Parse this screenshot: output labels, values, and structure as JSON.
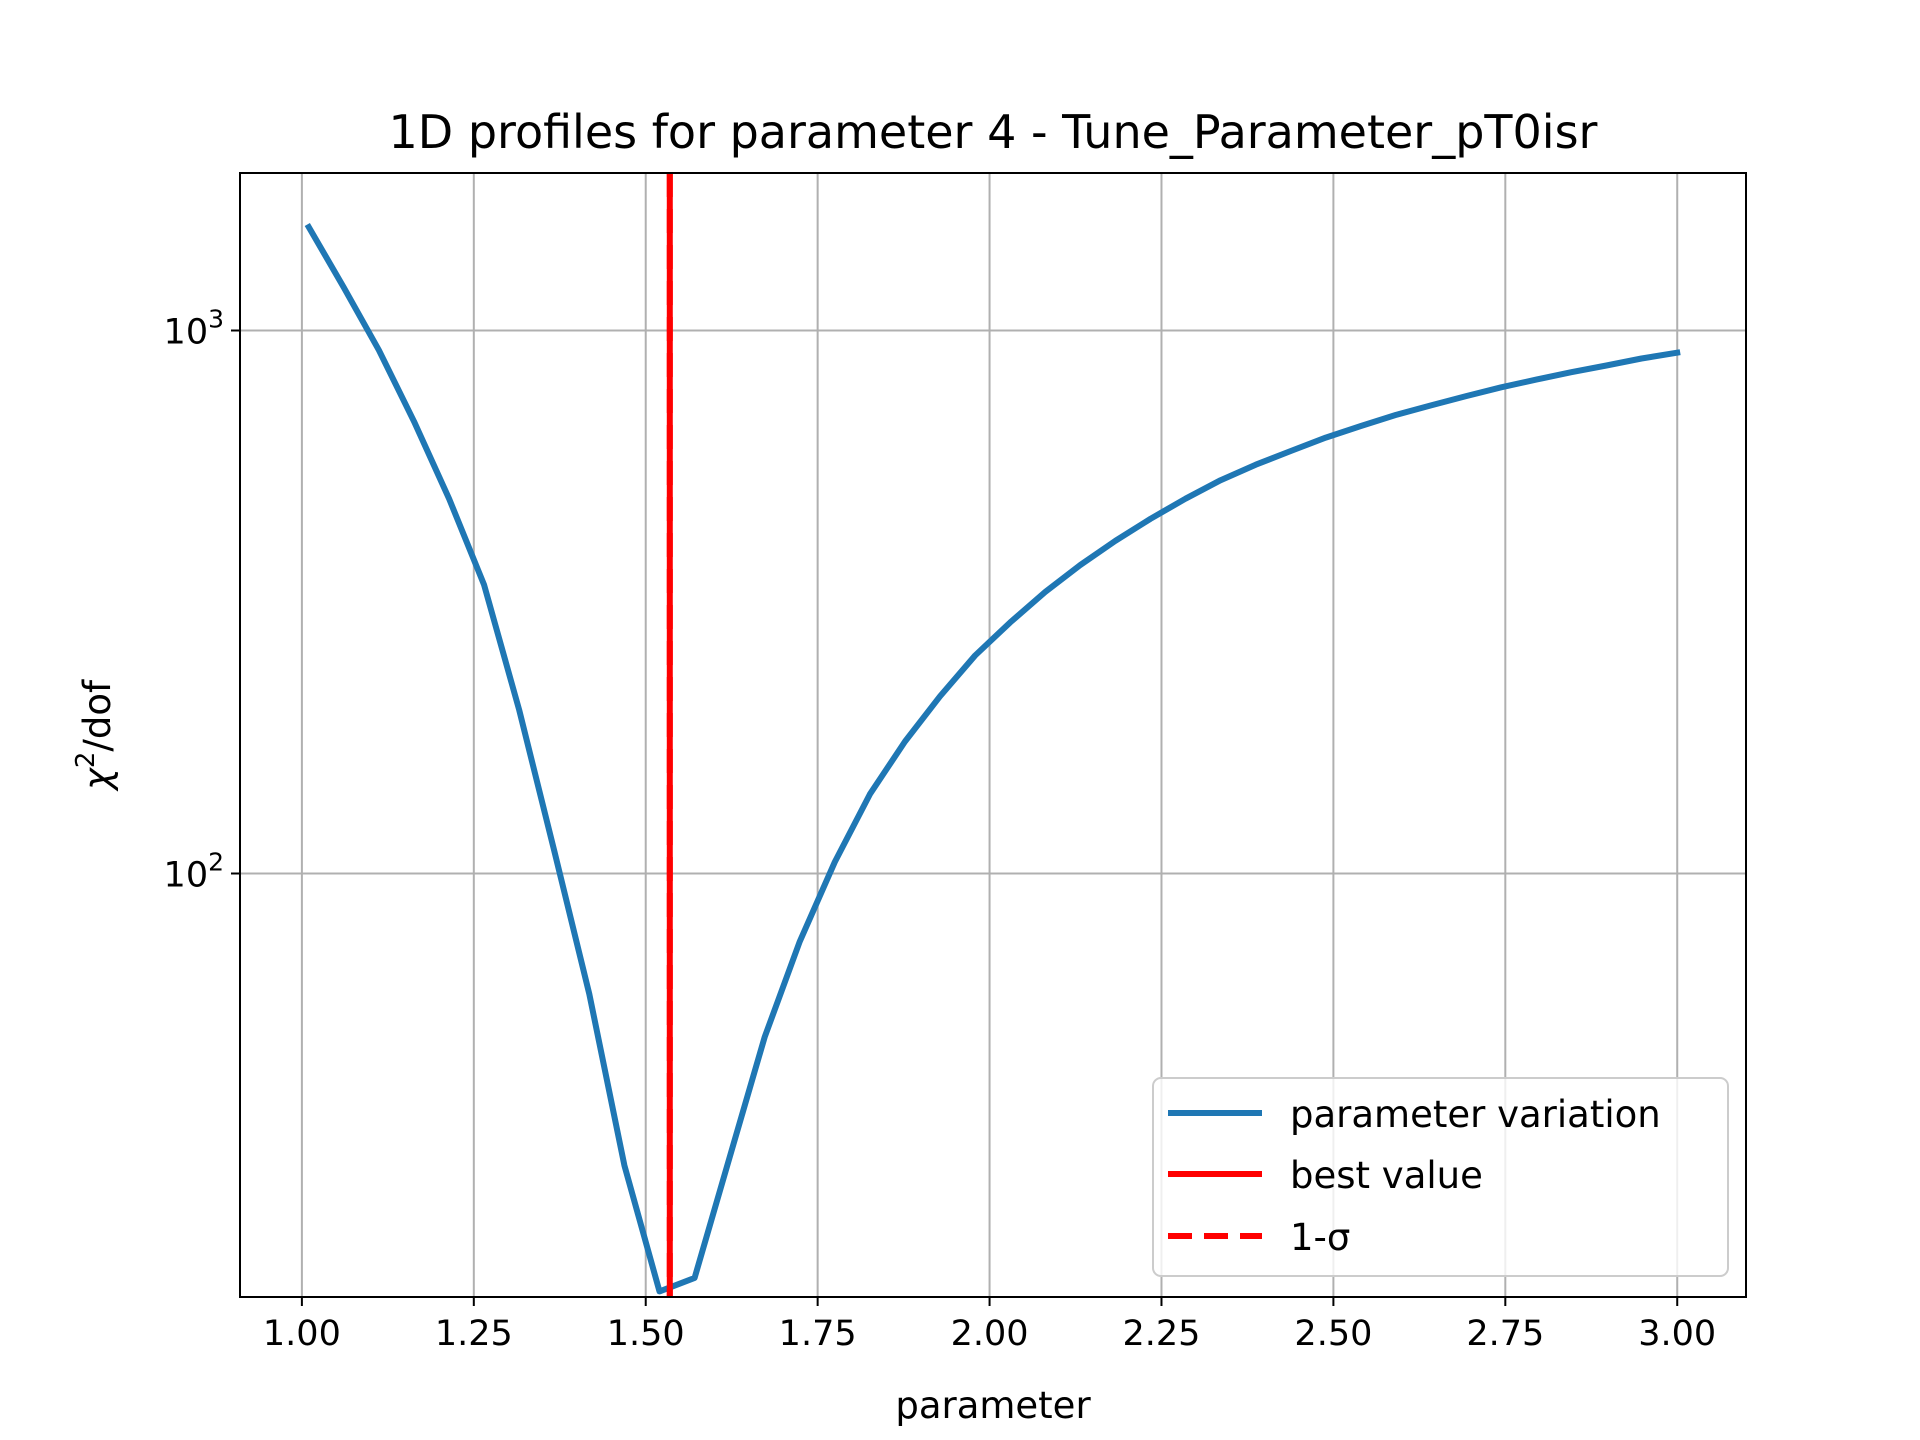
{
  "chart_data": {
    "type": "line",
    "title": "1D profiles for parameter 4 - Tune_Parameter_pT0isr",
    "xlabel": "parameter",
    "ylabel_base": "χ",
    "ylabel_sup": "2",
    "ylabel_rest": "/dof",
    "xlim": [
      0.91,
      3.1
    ],
    "ylim": [
      16.6,
      1950
    ],
    "yscale": "log",
    "grid": true,
    "legend_position": "lower-right",
    "x_ticks": [
      {
        "value": 1.0,
        "label": "1.00"
      },
      {
        "value": 1.25,
        "label": "1.25"
      },
      {
        "value": 1.5,
        "label": "1.50"
      },
      {
        "value": 1.75,
        "label": "1.75"
      },
      {
        "value": 2.0,
        "label": "2.00"
      },
      {
        "value": 2.25,
        "label": "2.25"
      },
      {
        "value": 2.5,
        "label": "2.50"
      },
      {
        "value": 2.75,
        "label": "2.75"
      },
      {
        "value": 3.0,
        "label": "3.00"
      }
    ],
    "y_ticks": [
      {
        "value": 100,
        "base": "10",
        "exp": "2"
      },
      {
        "value": 1000,
        "base": "10",
        "exp": "3"
      }
    ],
    "series": [
      {
        "name": "parameter variation",
        "color": "#1f77b4",
        "style": "solid",
        "x": [
          1.01,
          1.061,
          1.112,
          1.163,
          1.214,
          1.265,
          1.316,
          1.367,
          1.418,
          1.469,
          1.52,
          1.571,
          1.622,
          1.673,
          1.724,
          1.775,
          1.826,
          1.877,
          1.928,
          1.979,
          2.03,
          2.081,
          2.132,
          2.183,
          2.234,
          2.285,
          2.336,
          2.387,
          2.438,
          2.489,
          2.54,
          2.591,
          2.642,
          2.693,
          2.744,
          2.795,
          2.846,
          2.897,
          2.948,
          3.0
        ],
        "y": [
          1550,
          1200,
          920,
          680,
          490,
          340,
          200,
          110,
          60,
          29,
          17,
          18,
          30,
          50,
          75,
          105,
          140,
          175,
          212,
          252,
          290,
          330,
          370,
          410,
          450,
          490,
          530,
          566,
          600,
          635,
          667,
          699,
          728,
          757,
          786,
          812,
          838,
          862,
          888,
          910
        ]
      },
      {
        "name": "best value",
        "color": "#ff0000",
        "style": "solid",
        "x_value": 1.535
      },
      {
        "name": "1-σ",
        "color": "#ff0000",
        "style": "dashed",
        "x_value": 1.535
      }
    ]
  }
}
